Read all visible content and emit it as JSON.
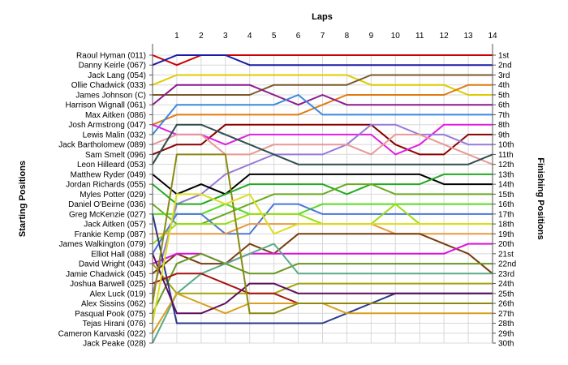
{
  "chart_data": {
    "type": "line",
    "title": "",
    "xlabel": "Laps",
    "ylabel_left": "Starting Positions",
    "ylabel_right": "Finishing Positions",
    "x": [
      0,
      1,
      2,
      3,
      4,
      5,
      6,
      7,
      8,
      9,
      10,
      11,
      12,
      13,
      14
    ],
    "x_tick_labels": [
      "1",
      "2",
      "3",
      "4",
      "5",
      "6",
      "7",
      "8",
      "9",
      "10",
      "11",
      "12",
      "13",
      "14"
    ],
    "ylim": [
      1,
      30
    ],
    "y_inverted": true,
    "grid": true,
    "starting_labels": [
      "Raoul Hyman (011)",
      "Danny Keirle (067)",
      "Jack Lang (054)",
      "Ollie Chadwick (033)",
      "James Johnson (C)",
      "Harrison Wignall (061)",
      "Max Aitken (086)",
      "Josh Armstrong (047)",
      "Lewis Malin (032)",
      "Jack Bartholomew (089)",
      "Sam Smelt (096)",
      "Leon Hilleard (053)",
      "Matthew Ryder (049)",
      "Jordan Richards (055)",
      "Myles Potter (029)",
      "Daniel O'Beirne (036)",
      "Greg McKenzie (027)",
      "Jack Aitken (057)",
      "Frankie Kemp (087)",
      "James Walkington (079)",
      "Elliot Hall (088)",
      "David Wright (043)",
      "Jamie Chadwick (045)",
      "Joshua Barwell (025)",
      "Alex Luck (019)",
      "Alex Sissins (062)",
      "Pasqual Pook (075)",
      "Tejas Hirani (076)",
      "Cameron Karvaski (022)",
      "Jack Peake (028)"
    ],
    "finishing_labels": [
      "1st",
      "2nd",
      "3rd",
      "4th",
      "5th",
      "6th",
      "7th",
      "8th",
      "9th",
      "10th",
      "11th",
      "12th",
      "13th",
      "14th",
      "15th",
      "16th",
      "17th",
      "18th",
      "19th",
      "20th",
      "21st",
      "22nd",
      "23rd",
      "24th",
      "25th",
      "26th",
      "27th",
      "28th",
      "29th",
      "30th"
    ],
    "series": [
      {
        "color": "#cc0000",
        "values": [
          1,
          2,
          1,
          1,
          1,
          1,
          1,
          1,
          1,
          1,
          1,
          1,
          1,
          1,
          1
        ]
      },
      {
        "color": "#1a1aa6",
        "values": [
          2,
          1,
          1,
          1,
          2,
          2,
          2,
          2,
          2,
          2,
          2,
          2,
          2,
          2,
          2
        ]
      },
      {
        "color": "#ddcc00",
        "values": [
          4,
          3,
          3,
          3,
          3,
          3,
          3,
          3,
          3,
          4,
          4,
          4,
          4,
          5,
          5
        ]
      },
      {
        "color": "#7a5a2a",
        "values": [
          5,
          5,
          5,
          5,
          5,
          4,
          4,
          4,
          4,
          3,
          3,
          3,
          3,
          3,
          3
        ]
      },
      {
        "color": "#e07a10",
        "values": [
          8,
          7,
          7,
          7,
          7,
          7,
          7,
          6,
          5,
          5,
          5,
          5,
          5,
          4,
          4
        ]
      },
      {
        "color": "#8b1a8b",
        "values": [
          6,
          4,
          4,
          4,
          4,
          5,
          6,
          5,
          6,
          6,
          6,
          6,
          6,
          6,
          6
        ]
      },
      {
        "color": "#3a88e0",
        "values": [
          9,
          6,
          6,
          6,
          6,
          6,
          5,
          7,
          7,
          7,
          7,
          7,
          7,
          7,
          7
        ]
      },
      {
        "color": "#8b0000",
        "values": [
          11,
          10,
          10,
          8,
          8,
          8,
          8,
          8,
          8,
          8,
          10,
          11,
          11,
          9,
          9
        ]
      },
      {
        "color": "#e020e0",
        "values": [
          8,
          9,
          9,
          10,
          9,
          9,
          9,
          9,
          9,
          9,
          11,
          10,
          8,
          8,
          8
        ]
      },
      {
        "color": "#9a7ad8",
        "values": [
          25,
          16,
          15,
          13,
          12,
          11,
          11,
          11,
          10,
          8,
          8,
          9,
          9,
          10,
          10
        ]
      },
      {
        "color": "#e89898",
        "values": [
          10,
          9,
          9,
          11,
          11,
          10,
          10,
          10,
          10,
          11,
          9,
          9,
          10,
          11,
          12
        ]
      },
      {
        "color": "#2f4f4f",
        "values": [
          12,
          8,
          8,
          9,
          10,
          11,
          12,
          12,
          12,
          12,
          12,
          12,
          12,
          12,
          11
        ]
      },
      {
        "color": "#000000",
        "values": [
          13,
          15,
          14,
          15,
          13,
          13,
          13,
          13,
          13,
          13,
          13,
          13,
          14,
          14,
          14
        ]
      },
      {
        "color": "#22aa22",
        "values": [
          14,
          16,
          16,
          15,
          14,
          14,
          14,
          14,
          15,
          14,
          14,
          14,
          13,
          13,
          13
        ]
      },
      {
        "color": "#6aaa22",
        "values": [
          16,
          18,
          18,
          17,
          16,
          15,
          15,
          15,
          14,
          14,
          15,
          15,
          15,
          15,
          15
        ]
      },
      {
        "color": "#55dd22",
        "values": [
          17,
          17,
          17,
          16,
          17,
          17,
          17,
          16,
          16,
          16,
          16,
          16,
          16,
          16,
          16
        ]
      },
      {
        "color": "#4a78d8",
        "values": [
          21,
          17,
          17,
          19,
          19,
          16,
          16,
          17,
          17,
          17,
          17,
          17,
          17,
          17,
          17
        ]
      },
      {
        "color": "#99dd11",
        "values": [
          20,
          18,
          18,
          18,
          17,
          17,
          17,
          18,
          18,
          18,
          16,
          18,
          18,
          18,
          18
        ]
      },
      {
        "color": "#e89a40",
        "values": [
          19,
          19,
          19,
          19,
          18,
          18,
          18,
          18,
          18,
          18,
          19,
          19,
          19,
          19,
          19
        ]
      },
      {
        "color": "#7a3c10",
        "values": [
          23,
          21,
          22,
          22,
          20,
          21,
          19,
          19,
          19,
          19,
          19,
          19,
          20,
          21,
          23
        ]
      },
      {
        "color": "#dd11dd",
        "values": [
          22,
          21,
          21,
          22,
          21,
          21,
          21,
          21,
          21,
          21,
          21,
          21,
          21,
          20,
          20
        ]
      },
      {
        "color": "#669922",
        "values": [
          27,
          22,
          21,
          22,
          23,
          23,
          22,
          22,
          22,
          22,
          22,
          22,
          22,
          22,
          22
        ]
      },
      {
        "color": "#5aaa88",
        "values": [
          30,
          25,
          23,
          22,
          21,
          20,
          23,
          23,
          23,
          23,
          23,
          23,
          23,
          23,
          23
        ]
      },
      {
        "color": "#a4a410",
        "values": [
          22,
          25,
          25,
          25,
          25,
          25,
          24,
          24,
          24,
          24,
          24,
          24,
          24,
          24,
          24
        ]
      },
      {
        "color": "#2a3a8a",
        "values": [
          17,
          28,
          28,
          28,
          28,
          28,
          28,
          28,
          27,
          26,
          25,
          25,
          25,
          25,
          25
        ]
      },
      {
        "color": "#aa1111",
        "values": [
          24,
          23,
          23,
          24,
          25,
          25,
          26,
          26,
          26,
          26,
          26,
          26,
          26,
          26,
          26
        ]
      },
      {
        "color": "#d8a020",
        "values": [
          29,
          25,
          26,
          27,
          26,
          26,
          26,
          26,
          27,
          27,
          27,
          27,
          27,
          27,
          27
        ]
      },
      {
        "color": "#5e0e5e",
        "values": [
          21,
          27,
          27,
          26,
          24,
          24,
          25,
          25,
          25,
          25,
          25,
          25,
          25,
          25,
          25
        ]
      },
      {
        "color": "#8a8a10",
        "values": [
          26,
          11,
          11,
          11,
          27,
          27,
          26,
          26,
          26,
          26,
          26,
          26,
          26,
          26,
          26
        ]
      },
      {
        "color": "#dddd22",
        "values": [
          28,
          15,
          15,
          16,
          15,
          19,
          18,
          18,
          18,
          18,
          18,
          18,
          18,
          18,
          18
        ]
      }
    ]
  }
}
